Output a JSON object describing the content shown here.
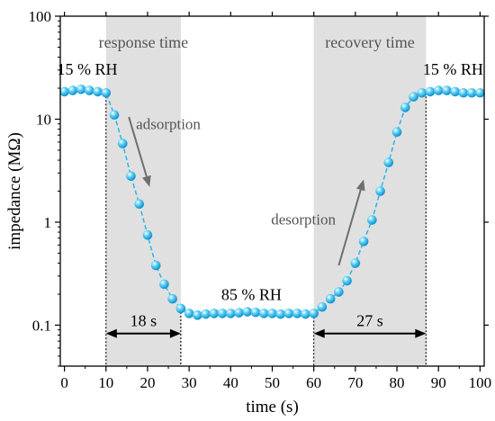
{
  "chart_data": {
    "type": "scatter",
    "xlabel": "time (s)",
    "ylabel": "impedance (MΩ)",
    "xlim": [
      -1,
      101
    ],
    "ylim": [
      0.04,
      100
    ],
    "yscale": "log",
    "grid": false,
    "xticks": [
      0,
      10,
      20,
      30,
      40,
      50,
      60,
      70,
      80,
      90,
      100
    ],
    "xtick_labels": [
      "0",
      "10",
      "20",
      "30",
      "40",
      "50",
      "60",
      "70",
      "80",
      "90",
      "100"
    ],
    "yticks": [
      0.1,
      1,
      10,
      100
    ],
    "ytick_labels": [
      "0.1",
      "1",
      "10",
      "100"
    ],
    "series": [
      {
        "color": "#29b6e8",
        "line_style": "dashed",
        "x": [
          0,
          2,
          4,
          6,
          8,
          10,
          12,
          14,
          16,
          18,
          20,
          22,
          24,
          26,
          28,
          30,
          32,
          34,
          36,
          38,
          40,
          42,
          44,
          46,
          48,
          50,
          52,
          54,
          56,
          58,
          60,
          62,
          64,
          66,
          68,
          70,
          72,
          74,
          76,
          78,
          80,
          82,
          84,
          86,
          88,
          90,
          92,
          94,
          96,
          98,
          100
        ],
        "y": [
          18.5,
          19.0,
          19.5,
          19.0,
          18.5,
          18.0,
          11.0,
          5.8,
          2.8,
          1.5,
          0.75,
          0.38,
          0.25,
          0.18,
          0.145,
          0.13,
          0.125,
          0.128,
          0.13,
          0.13,
          0.13,
          0.132,
          0.135,
          0.133,
          0.13,
          0.13,
          0.128,
          0.13,
          0.13,
          0.128,
          0.13,
          0.15,
          0.18,
          0.21,
          0.27,
          0.4,
          0.65,
          1.05,
          2.0,
          3.8,
          7.5,
          13.0,
          16.5,
          18.0,
          18.5,
          19.0,
          19.0,
          18.5,
          18.0,
          18.0,
          18.0
        ]
      }
    ],
    "shaded_regions": [
      {
        "label": "response time",
        "x_start": 10,
        "x_end": 28,
        "color": "#e0e0e0"
      },
      {
        "label": "recovery time",
        "x_start": 60,
        "x_end": 87,
        "color": "#e0e0e0"
      }
    ],
    "annotations": [
      {
        "text": "15 % RH",
        "x": 5.5,
        "y": 27
      },
      {
        "text": "85 % RH",
        "x": 45,
        "y": 0.175
      },
      {
        "text": "15 % RH",
        "x": 93.5,
        "y": 27
      },
      {
        "text": "adsorption",
        "x": 25,
        "y": 8
      },
      {
        "text": "desorption",
        "x": 57.5,
        "y": 0.95
      }
    ],
    "arrows": [
      {
        "x1": 15.5,
        "y1": 10.5,
        "x2": 20.5,
        "y2": 2.2,
        "color": "#6e6e6e"
      },
      {
        "x1": 66,
        "y1": 0.38,
        "x2": 72,
        "y2": 2.6,
        "color": "#6e6e6e"
      }
    ],
    "spans": [
      {
        "label": "18 s",
        "x_start": 10,
        "x_end": 28,
        "y": 0.083
      },
      {
        "label": "27 s",
        "x_start": 60,
        "x_end": 87,
        "y": 0.083
      }
    ],
    "vlines": [
      {
        "x": 10,
        "y_from": 18,
        "y_to": 0.04
      },
      {
        "x": 28,
        "y_from": 0.145,
        "y_to": 0.04
      },
      {
        "x": 60,
        "y_from": 0.13,
        "y_to": 0.04
      },
      {
        "x": 87,
        "y_from": 18,
        "y_to": 0.04
      }
    ]
  }
}
